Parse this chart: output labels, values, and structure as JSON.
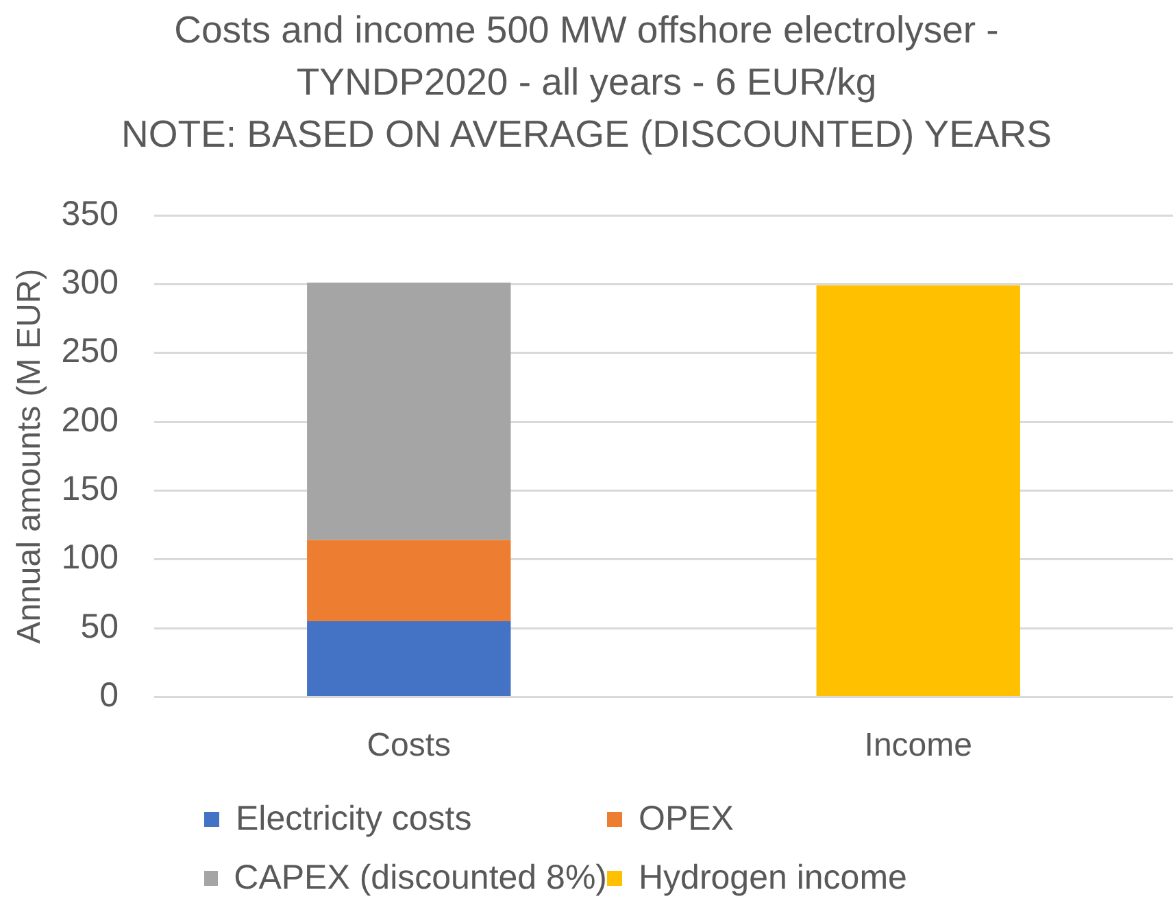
{
  "chart_data": {
    "type": "bar",
    "title": "Costs and income 500 MW offshore electrolyser - TYNDP2020 - all years - 6 EUR/kg",
    "subtitle": "NOTE: BASED ON AVERAGE (DISCOUNTED) YEARS",
    "ylabel": "Annual amounts (M EUR)",
    "categories": [
      "Costs",
      "Income"
    ],
    "stacked": true,
    "series": [
      {
        "name": "Electricity costs",
        "color": "#4472c4",
        "values": [
          55,
          null
        ]
      },
      {
        "name": "OPEX",
        "color": "#ed7d31",
        "values": [
          59,
          null
        ]
      },
      {
        "name": "CAPEX (discounted 8%)",
        "color": "#a5a5a5",
        "values": [
          187,
          null
        ]
      },
      {
        "name": "Hydrogen income",
        "color": "#ffc000",
        "values": [
          null,
          299
        ]
      }
    ],
    "ylim": [
      0,
      350
    ],
    "yticks": [
      0,
      50,
      100,
      150,
      200,
      250,
      300,
      350
    ],
    "grid": "y",
    "legend": "bottom"
  }
}
